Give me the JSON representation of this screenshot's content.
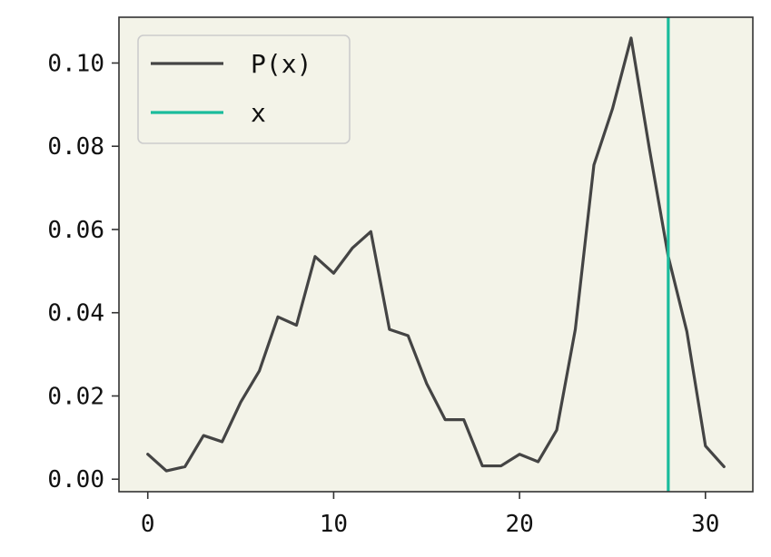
{
  "chart_data": {
    "type": "line",
    "x": [
      0,
      1,
      2,
      3,
      4,
      5,
      6,
      7,
      8,
      9,
      10,
      11,
      12,
      13,
      14,
      15,
      16,
      17,
      18,
      19,
      20,
      21,
      22,
      23,
      24,
      25,
      26,
      27,
      28,
      29,
      30,
      31
    ],
    "series": [
      {
        "name": "P(x)",
        "color": "#444444",
        "values": [
          0.006,
          0.002,
          0.003,
          0.0105,
          0.009,
          0.0185,
          0.026,
          0.039,
          0.037,
          0.0535,
          0.0495,
          0.0555,
          0.0595,
          0.036,
          0.0345,
          0.023,
          0.0143,
          0.0143,
          0.0032,
          0.0032,
          0.006,
          0.0042,
          0.0118,
          0.036,
          0.0755,
          0.089,
          0.106,
          0.079,
          0.0535,
          0.0355,
          0.008,
          0.003
        ]
      }
    ],
    "vline": {
      "name": "x",
      "x": 28,
      "color": "#1abc9c"
    },
    "xlim": [
      -1.55,
      32.55
    ],
    "ylim": [
      -0.003,
      0.111
    ],
    "xticks": [
      0,
      10,
      20,
      30
    ],
    "xtick_labels": [
      "0",
      "10",
      "20",
      "30"
    ],
    "yticks": [
      0,
      0.02,
      0.04,
      0.06,
      0.08,
      0.1
    ],
    "ytick_labels": [
      "0.00",
      "0.02",
      "0.04",
      "0.06",
      "0.08",
      "0.10"
    ],
    "title": "",
    "xlabel": "",
    "ylabel": "",
    "grid": false,
    "legend": {
      "placement": "top-left",
      "entries": [
        {
          "label": "P(x)",
          "color": "#444444"
        },
        {
          "label": "x",
          "color": "#1abc9c"
        }
      ]
    },
    "plot_background": "#f3f3e8"
  }
}
